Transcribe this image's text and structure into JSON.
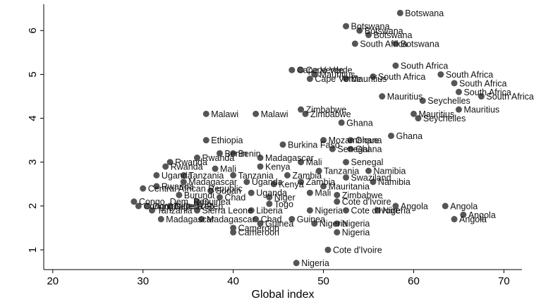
{
  "chart_data": {
    "type": "scatter",
    "title": "",
    "xlabel": "Global index",
    "ylabel": "",
    "xlim": [
      19,
      72
    ],
    "ylim": [
      0.55,
      6.6
    ],
    "xticks": [
      20,
      30,
      40,
      50,
      60,
      70
    ],
    "yticks": [
      1,
      2,
      3,
      4,
      5,
      6
    ],
    "grid": "none",
    "marker_color": "#555555",
    "points": [
      {
        "x": 58.5,
        "y": 6.4,
        "label": "Botswana"
      },
      {
        "x": 52.5,
        "y": 6.1,
        "label": "Botswana"
      },
      {
        "x": 54.0,
        "y": 6.0,
        "label": "Botswana"
      },
      {
        "x": 55.0,
        "y": 5.9,
        "label": "Botswana"
      },
      {
        "x": 53.5,
        "y": 5.7,
        "label": "South Africa"
      },
      {
        "x": 58.0,
        "y": 5.7,
        "label": "Botswana"
      },
      {
        "x": 58.0,
        "y": 5.2,
        "label": "South Africa"
      },
      {
        "x": 46.5,
        "y": 5.1,
        "label": "Cape Verde"
      },
      {
        "x": 47.5,
        "y": 5.1,
        "label": "Cape Verde"
      },
      {
        "x": 49.0,
        "y": 5.0,
        "label": "Mauritius"
      },
      {
        "x": 52.5,
        "y": 4.9,
        "label": "Mauritius"
      },
      {
        "x": 48.5,
        "y": 4.9,
        "label": "Cape Verde"
      },
      {
        "x": 55.5,
        "y": 4.95,
        "label": "South Africa"
      },
      {
        "x": 63.0,
        "y": 5.0,
        "label": "South Africa"
      },
      {
        "x": 64.5,
        "y": 4.8,
        "label": "South Africa"
      },
      {
        "x": 65.0,
        "y": 4.6,
        "label": "South Africa"
      },
      {
        "x": 67.5,
        "y": 4.5,
        "label": "South Africa"
      },
      {
        "x": 56.5,
        "y": 4.5,
        "label": "Mauritius"
      },
      {
        "x": 61.0,
        "y": 4.4,
        "label": "Seychelles"
      },
      {
        "x": 65.0,
        "y": 4.2,
        "label": "Mauritius"
      },
      {
        "x": 60.0,
        "y": 4.1,
        "label": "Mauritius"
      },
      {
        "x": 60.5,
        "y": 4.0,
        "label": "Seychelles"
      },
      {
        "x": 47.5,
        "y": 4.2,
        "label": "Zimbabwe"
      },
      {
        "x": 48.0,
        "y": 4.1,
        "label": "Zimbabwe"
      },
      {
        "x": 37.0,
        "y": 4.1,
        "label": "Malawi"
      },
      {
        "x": 42.5,
        "y": 4.1,
        "label": "Malawi"
      },
      {
        "x": 52.0,
        "y": 3.9,
        "label": "Ghana"
      },
      {
        "x": 57.5,
        "y": 3.6,
        "label": "Ghana"
      },
      {
        "x": 37.0,
        "y": 3.5,
        "label": "Ethiopia"
      },
      {
        "x": 50.0,
        "y": 3.5,
        "label": "Mozambique"
      },
      {
        "x": 53.0,
        "y": 3.5,
        "label": "Ghana"
      },
      {
        "x": 45.5,
        "y": 3.4,
        "label": "Burkina Faso"
      },
      {
        "x": 51.0,
        "y": 3.3,
        "label": "Senegal"
      },
      {
        "x": 53.0,
        "y": 3.3,
        "label": "Ghana"
      },
      {
        "x": 38.5,
        "y": 3.2,
        "label": "Benin"
      },
      {
        "x": 40.0,
        "y": 3.2,
        "label": "Benin"
      },
      {
        "x": 36.0,
        "y": 3.1,
        "label": "Rwanda"
      },
      {
        "x": 43.0,
        "y": 3.1,
        "label": "Madagascar"
      },
      {
        "x": 47.5,
        "y": 3.0,
        "label": "Mali"
      },
      {
        "x": 52.5,
        "y": 3.0,
        "label": "Senegal"
      },
      {
        "x": 33.0,
        "y": 3.0,
        "label": "Rwanda"
      },
      {
        "x": 32.5,
        "y": 2.9,
        "label": "Rwanda"
      },
      {
        "x": 38.0,
        "y": 2.85,
        "label": "Mali"
      },
      {
        "x": 43.0,
        "y": 2.9,
        "label": "Kenya"
      },
      {
        "x": 49.5,
        "y": 2.8,
        "label": "Tanzania"
      },
      {
        "x": 55.0,
        "y": 2.8,
        "label": "Namibia"
      },
      {
        "x": 31.5,
        "y": 2.7,
        "label": "Uganda"
      },
      {
        "x": 34.5,
        "y": 2.7,
        "label": "Tanzania"
      },
      {
        "x": 40.0,
        "y": 2.7,
        "label": "Tanzania"
      },
      {
        "x": 46.0,
        "y": 2.7,
        "label": "Zambia"
      },
      {
        "x": 52.5,
        "y": 2.65,
        "label": "Swaziland"
      },
      {
        "x": 55.5,
        "y": 2.55,
        "label": "Namibia"
      },
      {
        "x": 34.5,
        "y": 2.55,
        "label": "Madagascar"
      },
      {
        "x": 41.5,
        "y": 2.55,
        "label": "Uganda"
      },
      {
        "x": 47.5,
        "y": 2.55,
        "label": "Zambia"
      },
      {
        "x": 31.5,
        "y": 2.45,
        "label": "Rwanda"
      },
      {
        "x": 44.5,
        "y": 2.5,
        "label": "Kenya"
      },
      {
        "x": 50.0,
        "y": 2.45,
        "label": "Mauritania"
      },
      {
        "x": 30.0,
        "y": 2.4,
        "label": "Central African Republic"
      },
      {
        "x": 37.5,
        "y": 2.35,
        "label": "Sudan"
      },
      {
        "x": 34.0,
        "y": 2.25,
        "label": "Burundi"
      },
      {
        "x": 42.0,
        "y": 2.3,
        "label": "Uganda"
      },
      {
        "x": 48.5,
        "y": 2.3,
        "label": "Mali"
      },
      {
        "x": 51.5,
        "y": 2.25,
        "label": "Zimbabwe"
      },
      {
        "x": 38.5,
        "y": 2.2,
        "label": "Chad"
      },
      {
        "x": 44.0,
        "y": 2.2,
        "label": "Niger"
      },
      {
        "x": 29.0,
        "y": 2.1,
        "label": "Congo, Dem. Rep."
      },
      {
        "x": 36.0,
        "y": 2.1,
        "label": "Guinea"
      },
      {
        "x": 44.0,
        "y": 2.05,
        "label": "Togo"
      },
      {
        "x": 51.5,
        "y": 2.1,
        "label": "Cote d'Ivoire"
      },
      {
        "x": 29.5,
        "y": 2.0,
        "label": "Congo, Dem. Rep."
      },
      {
        "x": 30.5,
        "y": 2.0,
        "label": "Congo, Dem. Rep."
      },
      {
        "x": 33.0,
        "y": 2.0,
        "label": "Nigeria"
      },
      {
        "x": 58.0,
        "y": 2.0,
        "label": "Angola"
      },
      {
        "x": 63.5,
        "y": 2.0,
        "label": "Angola"
      },
      {
        "x": 31.0,
        "y": 1.9,
        "label": "Tanzania"
      },
      {
        "x": 36.0,
        "y": 1.9,
        "label": "Sierra Leone"
      },
      {
        "x": 42.0,
        "y": 1.9,
        "label": "Liberia"
      },
      {
        "x": 48.5,
        "y": 1.9,
        "label": "Nigeria"
      },
      {
        "x": 52.5,
        "y": 1.9,
        "label": "Cote d'Ivoire"
      },
      {
        "x": 56.0,
        "y": 1.9,
        "label": "Nigeria"
      },
      {
        "x": 65.5,
        "y": 1.8,
        "label": "Angola"
      },
      {
        "x": 64.5,
        "y": 1.7,
        "label": "Angola"
      },
      {
        "x": 32.0,
        "y": 1.7,
        "label": "Madagascar"
      },
      {
        "x": 36.5,
        "y": 1.7,
        "label": "Madagascar"
      },
      {
        "x": 42.5,
        "y": 1.7,
        "label": "Chad"
      },
      {
        "x": 46.5,
        "y": 1.7,
        "label": "Guinea"
      },
      {
        "x": 40.0,
        "y": 1.5,
        "label": "Cameroon"
      },
      {
        "x": 43.0,
        "y": 1.6,
        "label": "Guinea"
      },
      {
        "x": 49.0,
        "y": 1.6,
        "label": "Nigeria"
      },
      {
        "x": 51.5,
        "y": 1.6,
        "label": "Nigeria"
      },
      {
        "x": 40.0,
        "y": 1.4,
        "label": "Cameroon"
      },
      {
        "x": 51.5,
        "y": 1.4,
        "label": "Nigeria"
      },
      {
        "x": 50.5,
        "y": 1.0,
        "label": "Cote d'Ivoire"
      },
      {
        "x": 47.0,
        "y": 0.7,
        "label": "Nigeria"
      }
    ]
  }
}
